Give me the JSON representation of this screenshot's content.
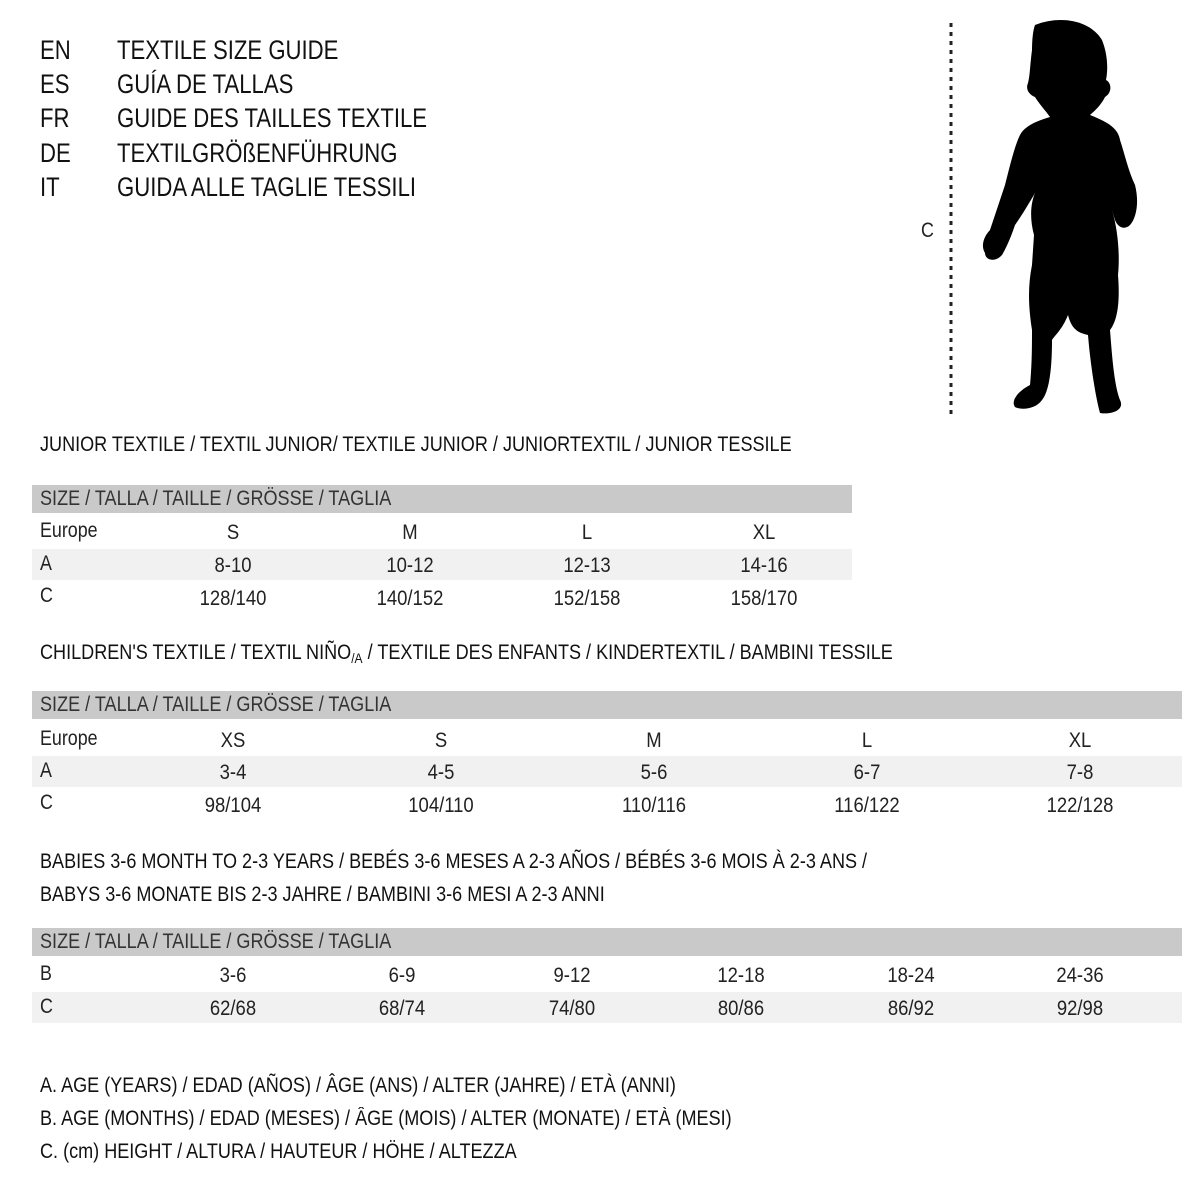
{
  "titles": [
    {
      "code": "EN",
      "text": "TEXTILE SIZE GUIDE"
    },
    {
      "code": "ES",
      "text": "GUÍA DE TALLAS"
    },
    {
      "code": "FR",
      "text": "GUIDE DES TAILLES TEXTILE"
    },
    {
      "code": "DE",
      "text": "TEXTILGRÖßENFÜHRUNG"
    },
    {
      "code": "IT",
      "text": "GUIDA ALLE TAGLIE TESSILI"
    }
  ],
  "figure": {
    "label": "C",
    "icon": "child-silhouette-icon"
  },
  "junior": {
    "heading": "JUNIOR TEXTILE / TEXTIL JUNIOR/ TEXTILE JUNIOR / JUNIORTEXTIL / JUNIOR TESSILE",
    "size_header": "SIZE / TALLA / TAILLE / GRÖSSE / TAGLIA",
    "rows": [
      {
        "label": "Europe",
        "values": [
          "S",
          "M",
          "L",
          "XL"
        ]
      },
      {
        "label": "A",
        "values": [
          "8-10",
          "10-12",
          "12-13",
          "14-16"
        ]
      },
      {
        "label": "C",
        "values": [
          "128/140",
          "140/152",
          "152/158",
          "158/170"
        ]
      }
    ]
  },
  "children": {
    "heading_pre": "CHILDREN'S TEXTILE / TEXTIL NIÑO",
    "heading_sub": "/A",
    "heading_post": " / TEXTILE DES ENFANTS / KINDERTEXTIL / BAMBINI TESSILE",
    "size_header": "SIZE / TALLA / TAILLE / GRÖSSE / TAGLIA",
    "rows": [
      {
        "label": "Europe",
        "values": [
          "XS",
          "S",
          "M",
          "L",
          "XL"
        ]
      },
      {
        "label": "A",
        "values": [
          "3-4",
          "4-5",
          "5-6",
          "6-7",
          "7-8"
        ]
      },
      {
        "label": "C",
        "values": [
          "98/104",
          "104/110",
          "110/116",
          "116/122",
          "122/128"
        ]
      }
    ]
  },
  "babies": {
    "heading_line1": "BABIES 3-6 MONTH TO 2-3 YEARS / BEBÉS 3-6 MESES A 2-3 AÑOS / BÉBÉS 3-6 MOIS À 2-3 ANS /",
    "heading_line2": "BABYS 3-6 MONATE BIS 2-3 JAHRE / BAMBINI 3-6 MESI A 2-3 ANNI",
    "size_header": "SIZE / TALLA / TAILLE / GRÖSSE / TAGLIA",
    "rows": [
      {
        "label": "B",
        "values": [
          "3-6",
          "6-9",
          "9-12",
          "12-18",
          "18-24",
          "24-36"
        ]
      },
      {
        "label": "C",
        "values": [
          "62/68",
          "68/74",
          "74/80",
          "80/86",
          "86/92",
          "92/98"
        ]
      }
    ]
  },
  "legend": [
    "A. AGE (YEARS) / EDAD (AÑOS) / ÂGE (ANS) / ALTER (JAHRE) / ETÀ (ANNI)",
    "B. AGE (MONTHS) / EDAD (MESES) / ÂGE (MOIS) / ALTER (MONATE) / ETÀ (MESI)",
    "C. (cm) HEIGHT / ALTURA / HAUTEUR / HÖHE / ALTEZZA"
  ],
  "colors": {
    "header_bar": "#c9c9c9",
    "stripe": "#f1f1f1",
    "text": "#111111"
  }
}
